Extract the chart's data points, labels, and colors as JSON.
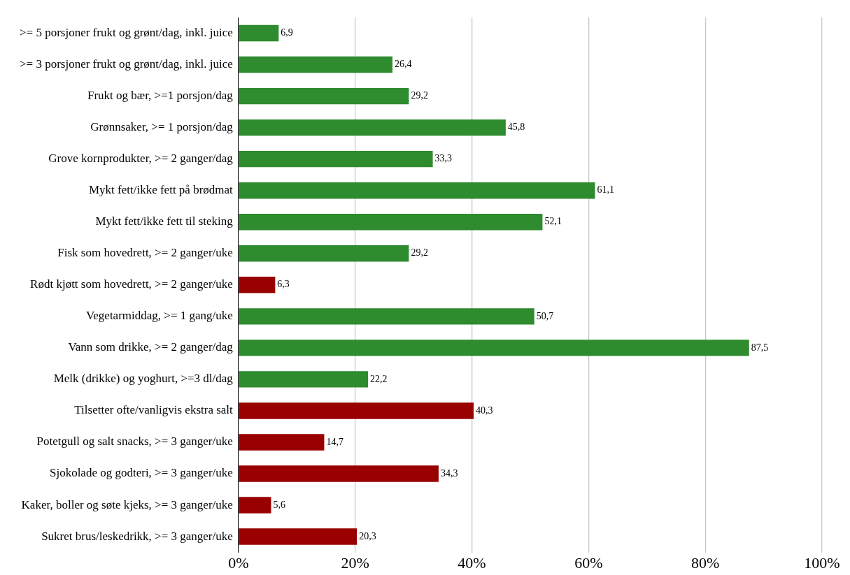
{
  "chart_data": {
    "type": "bar",
    "orientation": "horizontal",
    "categories": [
      ">= 5 porsjoner frukt og grønt/dag, inkl. juice",
      ">= 3 porsjoner frukt og grønt/dag, inkl. juice",
      "Frukt og bær, >=1 porsjon/dag",
      "Grønnsaker, >= 1 porsjon/dag",
      "Grove kornprodukter, >= 2 ganger/dag",
      "Mykt fett/ikke fett på brødmat",
      "Mykt fett/ikke fett til steking",
      "Fisk som hovedrett, >= 2 ganger/uke",
      "Rødt kjøtt som hovedrett, >= 2 ganger/uke",
      "Vegetarmiddag, >= 1 gang/uke",
      "Vann som drikke, >= 2 ganger/dag",
      "Melk (drikke) og yoghurt, >=3 dl/dag",
      "Tilsetter ofte/vanligvis ekstra salt",
      "Potetgull og salt snacks, >= 3 ganger/uke",
      "Sjokolade og godteri, >= 3 ganger/uke",
      "Kaker, boller og søte kjeks, >= 3 ganger/uke",
      "Sukret brus/leskedrikk, >= 3 ganger/uke"
    ],
    "values": [
      6.9,
      26.4,
      29.2,
      45.8,
      33.3,
      61.1,
      52.1,
      29.2,
      6.3,
      50.7,
      87.5,
      22.2,
      40.3,
      14.7,
      34.3,
      5.6,
      20.3
    ],
    "value_labels": [
      "6,9",
      "26,4",
      "29,2",
      "45,8",
      "33,3",
      "61,1",
      "52,1",
      "29,2",
      "6,3",
      "50,7",
      "87,5",
      "22,2",
      "40,3",
      "14,7",
      "34,3",
      "5,6",
      "20,3"
    ],
    "colors": [
      "#2e8b2e",
      "#2e8b2e",
      "#2e8b2e",
      "#2e8b2e",
      "#2e8b2e",
      "#2e8b2e",
      "#2e8b2e",
      "#2e8b2e",
      "#990000",
      "#2e8b2e",
      "#2e8b2e",
      "#2e8b2e",
      "#990000",
      "#990000",
      "#990000",
      "#990000",
      "#990000"
    ],
    "xlim": [
      0,
      100
    ],
    "xticks": [
      {
        "value": 0,
        "label": "0%"
      },
      {
        "value": 20,
        "label": "20%"
      },
      {
        "value": 40,
        "label": "40%"
      },
      {
        "value": 60,
        "label": "60%"
      },
      {
        "value": 80,
        "label": "80%"
      },
      {
        "value": 100,
        "label": "100%"
      }
    ],
    "grid": "x",
    "legend": false
  }
}
